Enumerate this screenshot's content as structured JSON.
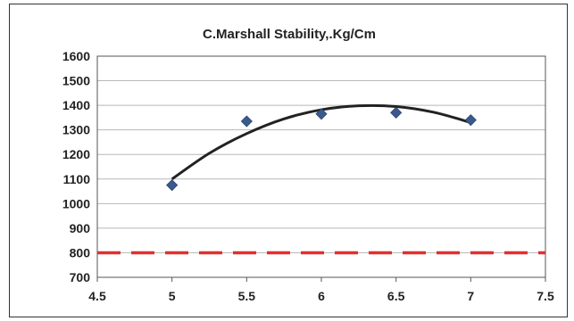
{
  "chart_data": {
    "type": "scatter",
    "title": "C.Marshall Stability,.Kg/Cm",
    "xlabel": "",
    "ylabel": "",
    "xlim": [
      4.5,
      7.5
    ],
    "ylim": [
      700,
      1600
    ],
    "x_ticks": [
      "4.5",
      "5",
      "5.5",
      "6",
      "6.5",
      "7",
      "7.5"
    ],
    "y_ticks": [
      "700",
      "800",
      "900",
      "1000",
      "1100",
      "1200",
      "1300",
      "1400",
      "1500",
      "1600"
    ],
    "grid": "horizontal",
    "legend": "none",
    "series": [
      {
        "kind": "points",
        "marker": "diamond",
        "color": "#3a5a8c",
        "x": [
          5,
          5.5,
          6,
          6.5,
          7
        ],
        "y": [
          1075,
          1335,
          1365,
          1370,
          1340
        ]
      },
      {
        "kind": "trend-curve",
        "color": "#222222",
        "x": [
          5,
          5.25,
          5.5,
          5.75,
          6,
          6.25,
          6.5,
          6.75,
          7
        ],
        "y": [
          1100,
          1205,
          1285,
          1345,
          1382,
          1398,
          1395,
          1372,
          1330
        ]
      },
      {
        "kind": "reference-line",
        "color": "#e03030",
        "x": [
          4.5,
          7.5
        ],
        "y": [
          800,
          800
        ]
      }
    ]
  }
}
